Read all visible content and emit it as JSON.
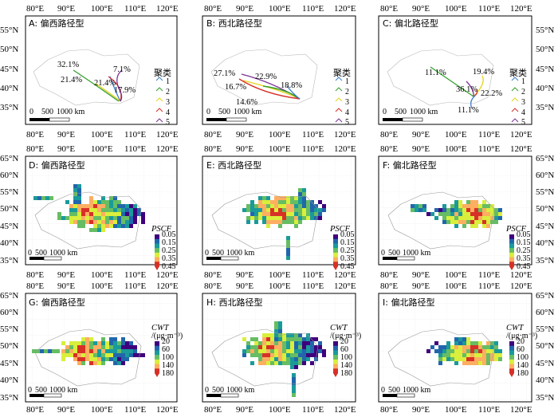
{
  "colors": {
    "cluster": [
      "#3b7fc8",
      "#33a02c",
      "#e6d21a",
      "#d73027",
      "#7b3294"
    ],
    "ramp": [
      "#3f007d",
      "#2166ac",
      "#1a9a9a",
      "#66bd63",
      "#d9ef3b",
      "#fdae61",
      "#d73027"
    ]
  },
  "lon_labels": [
    "80°E",
    "90°E",
    "100°E",
    "110°E",
    "120°E"
  ],
  "lat_labels": {
    "row1": [
      "55°N",
      "50°N",
      "45°N",
      "40°N",
      "35°N"
    ],
    "row23": [
      "65°N",
      "60°N",
      "55°N",
      "50°N",
      "45°N",
      "40°N",
      "35°N"
    ]
  },
  "scalebar": [
    "0",
    "500",
    "1000 km"
  ],
  "legend_cluster": {
    "title": "聚类",
    "items": [
      "1",
      "2",
      "3",
      "4",
      "5"
    ]
  },
  "legend_pscf": {
    "title": "PSCF",
    "values": [
      "0.05",
      "0.15",
      "0.25",
      "0.35",
      "0.45"
    ]
  },
  "legend_cwt": {
    "title": "CWT",
    "unit": "/(μg·m⁻³)",
    "values": [
      "20",
      "60",
      "100",
      "140",
      "180"
    ]
  },
  "panels": {
    "A": {
      "title": "A: 偏西路径型",
      "pcts": [
        {
          "t": "32.1%"
        },
        {
          "t": "7.1%"
        },
        {
          "t": "21.4%"
        },
        {
          "t": "21.4%"
        },
        {
          "t": "17.9%"
        }
      ]
    },
    "B": {
      "title": "B: 西北路径型",
      "pcts": [
        {
          "t": "27.1%"
        },
        {
          "t": "22.9%"
        },
        {
          "t": "16.7%"
        },
        {
          "t": "18.8%"
        },
        {
          "t": "14.6%"
        }
      ]
    },
    "C": {
      "title": "C: 偏北路径型",
      "pcts": [
        {
          "t": "11.1%"
        },
        {
          "t": "19.4%"
        },
        {
          "t": "36.1%"
        },
        {
          "t": "22.2%"
        },
        {
          "t": "11.1%"
        }
      ]
    },
    "D": {
      "title": "D: 偏西路径型"
    },
    "E": {
      "title": "E: 西北路径型"
    },
    "F": {
      "title": "F: 偏北路径型"
    },
    "G": {
      "title": "G: 偏西路径型"
    },
    "H": {
      "title": "H: 西北路径型"
    },
    "I": {
      "title": "I: 偏北路径型"
    }
  }
}
